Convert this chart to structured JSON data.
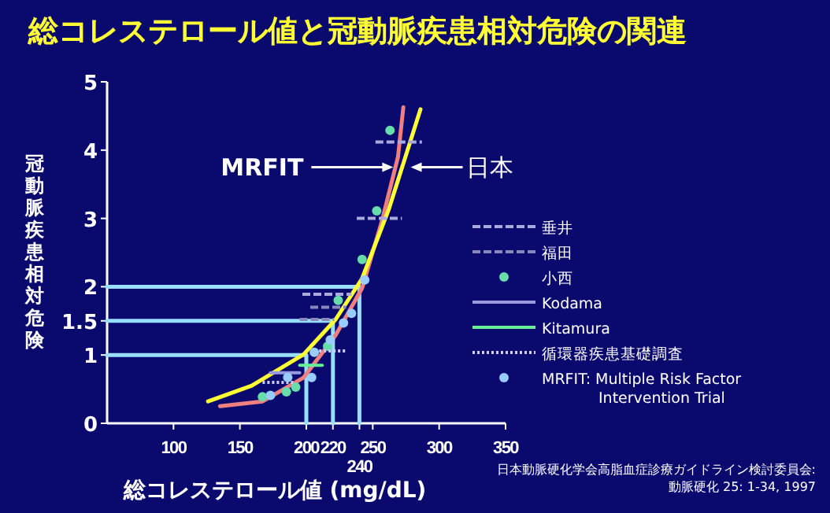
{
  "chart_data": {
    "type": "line",
    "title": "総コレステロール値と冠動脈疾患相対危険の関連",
    "xlabel": "総コレステロール値 (mg/dL)",
    "ylabel": "冠動脈疾患相対危険",
    "xlim": [
      50,
      350
    ],
    "xticks": [
      100,
      150,
      200,
      220,
      {
        "value": 240,
        "label": null
      },
      250,
      300,
      350
    ],
    "ylim": [
      0,
      5
    ],
    "yticks": [
      0,
      1,
      1.5,
      2,
      3,
      4,
      5
    ],
    "legend": "right",
    "series": [
      {
        "color": "#99ddff",
        "x": [
          50,
          200,
          200,
          null,
          50,
          220,
          220,
          null,
          50,
          240,
          240
        ],
        "values": [
          1,
          1,
          0,
          null,
          1.5,
          1.5,
          0,
          null,
          2,
          2,
          0
        ]
      },
      {
        "color": "#f08080",
        "x": [
          135,
          167,
          198,
          222,
          242,
          257,
          269,
          273
        ],
        "values": [
          0.25,
          0.32,
          0.67,
          1.29,
          1.98,
          2.97,
          3.9,
          4.63
        ]
      },
      {
        "color": "#ffff33",
        "x": [
          126,
          159,
          198,
          222,
          242,
          262,
          286
        ],
        "values": [
          0.32,
          0.55,
          1.01,
          1.52,
          2.12,
          3.13,
          4.6
        ]
      },
      {
        "name": "垂井",
        "line_style": "dashed",
        "color": "#aaaadd",
        "x": [
          252,
          287,
          null,
          238,
          272,
          null,
          197,
          234
        ],
        "values": [
          4.12,
          4.12,
          null,
          3.0,
          3.0,
          null,
          1.89,
          1.89
        ]
      },
      {
        "name": "福田",
        "line_style": "dashed",
        "color": "#8888bb",
        "x": [
          203,
          230,
          null,
          195,
          221
        ],
        "values": [
          1.7,
          1.7,
          null,
          1.52,
          1.52
        ]
      },
      {
        "name": "小西",
        "type": "scatter",
        "marker": "circle",
        "color": "#66ddaa",
        "x": [
          167,
          185,
          192,
          216,
          224,
          242,
          253,
          263
        ],
        "values": [
          0.39,
          0.46,
          0.53,
          1.13,
          1.8,
          2.4,
          3.11,
          4.29
        ]
      },
      {
        "name": "Kodama",
        "line_style": "solid",
        "color": "#9999dd",
        "x": [
          173,
          195
        ],
        "values": [
          0.74,
          0.74
        ]
      },
      {
        "name": "Kitamura",
        "line_style": "solid",
        "color": "#66ee99",
        "x": [
          195,
          212
        ],
        "values": [
          0.85,
          0.85
        ]
      },
      {
        "name": "循環器疾患基礎調査",
        "line_style": "dotted",
        "color": "#ccccff",
        "x": [
          206,
          230,
          null,
          167,
          191
        ],
        "values": [
          1.06,
          1.06,
          null,
          0.6,
          0.6
        ]
      },
      {
        "name": "MRFIT: Multiple Risk Factor Intervention Trial",
        "type": "scatter",
        "marker": "circle",
        "color": "#99ccff",
        "x": [
          173,
          186,
          204,
          206,
          218,
          228,
          234,
          244
        ],
        "values": [
          0.41,
          0.67,
          0.67,
          1.04,
          1.22,
          1.47,
          1.61,
          2.1
        ]
      }
    ],
    "annotations": [
      {
        "text": "MRFIT",
        "x": 269,
        "y": 3.75
      },
      {
        "text": "日本",
        "x": 275,
        "y": 3.75
      },
      {
        "text": "240",
        "x": 240,
        "y": 0
      },
      "日本動脈硬化学会高脂血症診療ガイドライン検討委員会:",
      "動脈硬化 25: 1-34, 1997"
    ]
  }
}
